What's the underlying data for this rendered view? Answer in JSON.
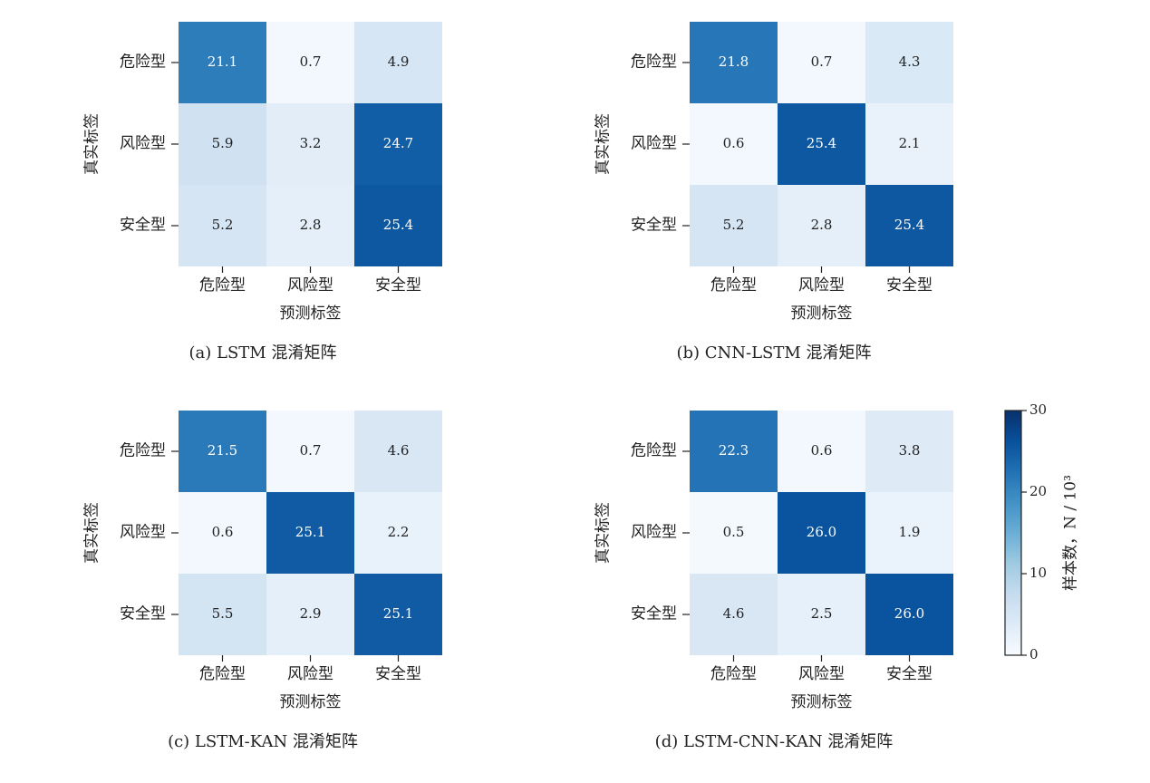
{
  "chart_data": [
    {
      "type": "heatmap",
      "caption": "(a)  LSTM 混淆矩阵",
      "row_labels": [
        "危险型",
        "风险型",
        "安全型"
      ],
      "col_labels": [
        "危险型",
        "风险型",
        "安全型"
      ],
      "xlabel": "预测标签",
      "ylabel": "真实标签",
      "values": [
        [
          21.1,
          0.7,
          4.9
        ],
        [
          5.9,
          3.2,
          24.7
        ],
        [
          5.2,
          2.8,
          25.4
        ]
      ],
      "value_labels": [
        [
          "21.1",
          "0.7",
          "4.9"
        ],
        [
          "5.9",
          "3.2",
          "24.7"
        ],
        [
          "5.2",
          "2.8",
          "25.4"
        ]
      ]
    },
    {
      "type": "heatmap",
      "caption": "(b)  CNN-LSTM 混淆矩阵",
      "row_labels": [
        "危险型",
        "风险型",
        "安全型"
      ],
      "col_labels": [
        "危险型",
        "风险型",
        "安全型"
      ],
      "xlabel": "预测标签",
      "ylabel": "真实标签",
      "values": [
        [
          21.8,
          0.7,
          4.3
        ],
        [
          0.6,
          25.4,
          2.1
        ],
        [
          5.2,
          2.8,
          25.4
        ]
      ],
      "value_labels": [
        [
          "21.8",
          "0.7",
          "4.3"
        ],
        [
          "0.6",
          "25.4",
          "2.1"
        ],
        [
          "5.2",
          "2.8",
          "25.4"
        ]
      ]
    },
    {
      "type": "heatmap",
      "caption": "(c)  LSTM-KAN 混淆矩阵",
      "row_labels": [
        "危险型",
        "风险型",
        "安全型"
      ],
      "col_labels": [
        "危险型",
        "风险型",
        "安全型"
      ],
      "xlabel": "预测标签",
      "ylabel": "真实标签",
      "values": [
        [
          21.5,
          0.7,
          4.6
        ],
        [
          0.6,
          25.1,
          2.2
        ],
        [
          5.5,
          2.9,
          25.1
        ]
      ],
      "value_labels": [
        [
          "21.5",
          "0.7",
          "4.6"
        ],
        [
          "0.6",
          "25.1",
          "2.2"
        ],
        [
          "5.5",
          "2.9",
          "25.1"
        ]
      ]
    },
    {
      "type": "heatmap",
      "caption": "(d)  LSTM-CNN-KAN 混淆矩阵",
      "row_labels": [
        "危险型",
        "风险型",
        "安全型"
      ],
      "col_labels": [
        "危险型",
        "风险型",
        "安全型"
      ],
      "xlabel": "预测标签",
      "ylabel": "真实标签",
      "values": [
        [
          22.3,
          0.6,
          3.8
        ],
        [
          0.5,
          26.0,
          1.9
        ],
        [
          4.6,
          2.5,
          26.0
        ]
      ],
      "value_labels": [
        [
          "22.3",
          "0.6",
          "3.8"
        ],
        [
          "0.5",
          "26.0",
          "1.9"
        ],
        [
          "4.6",
          "2.5",
          "26.0"
        ]
      ]
    }
  ],
  "colorbar": {
    "label": "样本数，N / 10³",
    "range": [
      0,
      30
    ],
    "ticks": [
      "30",
      "20",
      "10",
      "0"
    ],
    "tick_values": [
      30,
      20,
      10,
      0
    ],
    "colormap": "Blues",
    "low_color": "#f7fbff",
    "high_color": "#08306b"
  }
}
